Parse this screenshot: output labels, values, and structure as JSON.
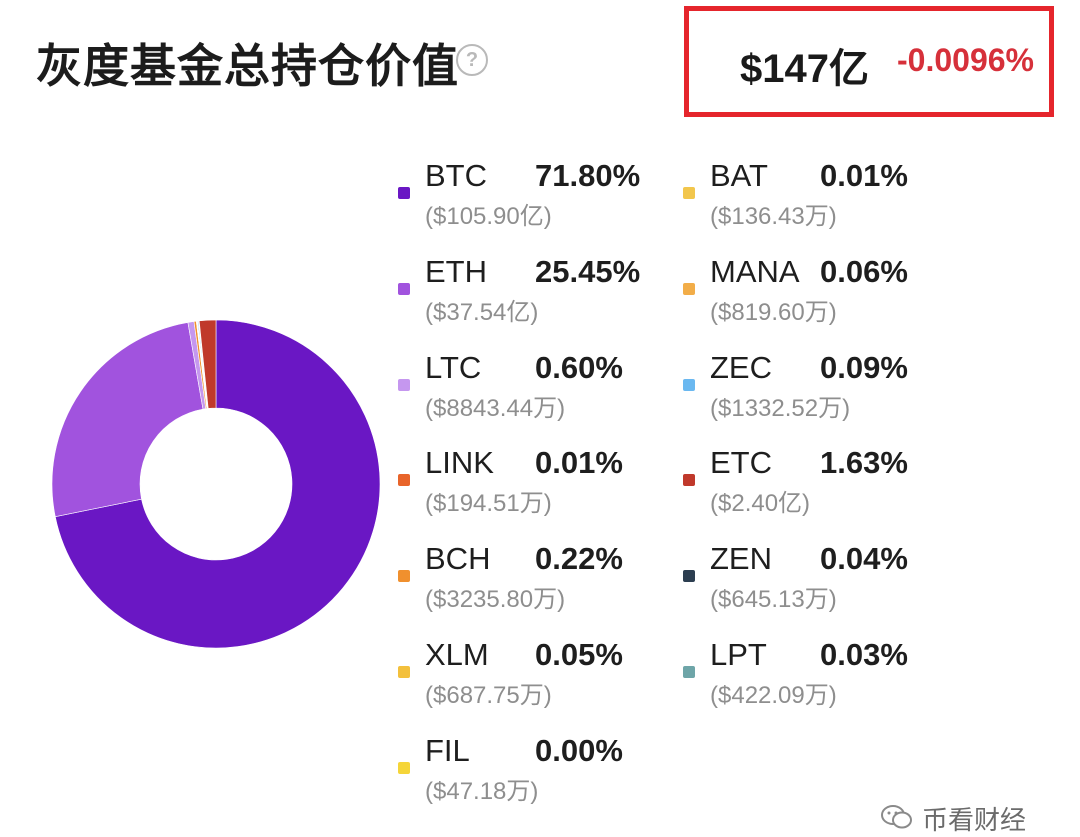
{
  "header": {
    "title": "灰度基金总持仓价值",
    "help_glyph": "?",
    "total_value": "$147亿",
    "total_change": "-0.0096%",
    "change_color": "#d6303a",
    "highlight_color": "#e5252c"
  },
  "chart_data": {
    "type": "pie",
    "style": "donut",
    "title": "",
    "series": [
      {
        "name": "BTC",
        "percent": 71.8,
        "label": "71.80%",
        "amount": "($105.90亿)",
        "color": "#6a17c4"
      },
      {
        "name": "ETH",
        "percent": 25.45,
        "label": "25.45%",
        "amount": "($37.54亿)",
        "color": "#a153de"
      },
      {
        "name": "LTC",
        "percent": 0.6,
        "label": "0.60%",
        "amount": "($8843.44万)",
        "color": "#c597ef"
      },
      {
        "name": "LINK",
        "percent": 0.01,
        "label": "0.01%",
        "amount": "($194.51万)",
        "color": "#e8642a"
      },
      {
        "name": "BCH",
        "percent": 0.22,
        "label": "0.22%",
        "amount": "($3235.80万)",
        "color": "#f0902e"
      },
      {
        "name": "XLM",
        "percent": 0.05,
        "label": "0.05%",
        "amount": "($687.75万)",
        "color": "#f3c03c"
      },
      {
        "name": "FIL",
        "percent": 0.0,
        "label": "0.00%",
        "amount": "($47.18万)",
        "color": "#f5d539"
      },
      {
        "name": "BAT",
        "percent": 0.01,
        "label": "0.01%",
        "amount": "($136.43万)",
        "color": "#f2c64c"
      },
      {
        "name": "MANA",
        "percent": 0.06,
        "label": "0.06%",
        "amount": "($819.60万)",
        "color": "#f2ad48"
      },
      {
        "name": "ZEC",
        "percent": 0.09,
        "label": "0.09%",
        "amount": "($1332.52万)",
        "color": "#6ab8f0"
      },
      {
        "name": "ETC",
        "percent": 1.63,
        "label": "1.63%",
        "amount": "($2.40亿)",
        "color": "#c0392b"
      },
      {
        "name": "ZEN",
        "percent": 0.04,
        "label": "0.04%",
        "amount": "($645.13万)",
        "color": "#2c3e50"
      },
      {
        "name": "LPT",
        "percent": 0.03,
        "label": "0.03%",
        "amount": "($422.09万)",
        "color": "#6ea5a8"
      }
    ],
    "slice_order": [
      "BTC",
      "ETH",
      "LTC",
      "BCH",
      "XLM",
      "FIL",
      "BAT",
      "MANA",
      "ZEC",
      "ZEN",
      "LPT",
      "LINK",
      "ETC"
    ],
    "legend_position": "right"
  },
  "watermark": {
    "text": "币看财经"
  }
}
